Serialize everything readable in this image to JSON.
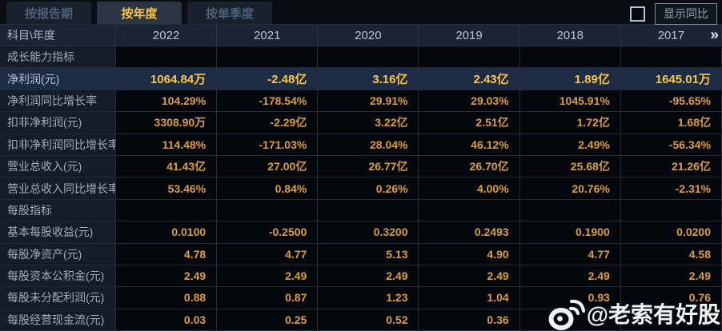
{
  "tabs": [
    {
      "label": "按报告期",
      "active": false
    },
    {
      "label": "按年度",
      "active": true
    },
    {
      "label": "按单季度",
      "active": false
    }
  ],
  "controls": {
    "show_yoy_label": "显示同比",
    "checkbox_checked": false
  },
  "table": {
    "corner_header": "科目\\年度",
    "year_columns": [
      "2022",
      "2021",
      "2020",
      "2019",
      "2018",
      "2017"
    ],
    "more_columns_icon": "»",
    "rows": [
      {
        "label": "成长能力指标",
        "type": "section",
        "values": [
          "",
          "",
          "",
          "",
          "",
          ""
        ]
      },
      {
        "label": "净利润(元)",
        "type": "highlight",
        "values": [
          "1064.84万",
          "-2.48亿",
          "3.16亿",
          "2.43亿",
          "1.89亿",
          "1645.01万"
        ]
      },
      {
        "label": "净利润同比增长率",
        "type": "data",
        "values": [
          "104.29%",
          "-178.54%",
          "29.91%",
          "29.03%",
          "1045.91%",
          "-95.65%"
        ]
      },
      {
        "label": "扣非净利润(元)",
        "type": "data",
        "values": [
          "3308.90万",
          "-2.29亿",
          "3.22亿",
          "2.51亿",
          "1.72亿",
          "1.68亿"
        ]
      },
      {
        "label": "扣非净利润同比增长率",
        "type": "data",
        "values": [
          "114.48%",
          "-171.03%",
          "28.04%",
          "46.12%",
          "2.49%",
          "-56.34%"
        ]
      },
      {
        "label": "营业总收入(元)",
        "type": "data",
        "values": [
          "41.43亿",
          "27.00亿",
          "26.77亿",
          "26.70亿",
          "25.68亿",
          "21.26亿"
        ]
      },
      {
        "label": "营业总收入同比增长率",
        "type": "data",
        "values": [
          "53.46%",
          "0.84%",
          "0.26%",
          "4.00%",
          "20.76%",
          "-2.31%"
        ]
      },
      {
        "label": "每股指标",
        "type": "section",
        "values": [
          "",
          "",
          "",
          "",
          "",
          ""
        ]
      },
      {
        "label": "基本每股收益(元)",
        "type": "data",
        "values": [
          "0.0100",
          "-0.2500",
          "0.3200",
          "0.2493",
          "0.1900",
          "0.0200"
        ]
      },
      {
        "label": "每股净资产(元)",
        "type": "data",
        "values": [
          "4.78",
          "4.77",
          "5.13",
          "4.90",
          "4.77",
          "4.58"
        ]
      },
      {
        "label": "每股资本公积金(元)",
        "type": "data",
        "values": [
          "2.49",
          "2.49",
          "2.49",
          "2.49",
          "2.49",
          "2.49"
        ]
      },
      {
        "label": "每股未分配利润(元)",
        "type": "data",
        "values": [
          "0.88",
          "0.87",
          "1.23",
          "1.04",
          "0.93",
          "0.76"
        ]
      },
      {
        "label": "每股经营现金流(元)",
        "type": "data",
        "values": [
          "0.03",
          "0.25",
          "0.52",
          "0.36",
          "",
          ""
        ]
      }
    ]
  },
  "watermark": {
    "icon": "weibo-icon",
    "text": "@老索有好股"
  },
  "colors": {
    "background": "#0a0e14",
    "tab_active_text": "#f6c53f",
    "tab_inactive_text": "#4e6077",
    "header_bg": "#1a2433",
    "label_cell_bg": "#141c27",
    "value_cell_bg": "#04070b",
    "highlight_row_bg": "#1e2b45",
    "value_text": "#dd9e3c",
    "highlight_value_text": "#fac842",
    "grid_line": "#222c38",
    "watermark_text": "#ffffff"
  }
}
